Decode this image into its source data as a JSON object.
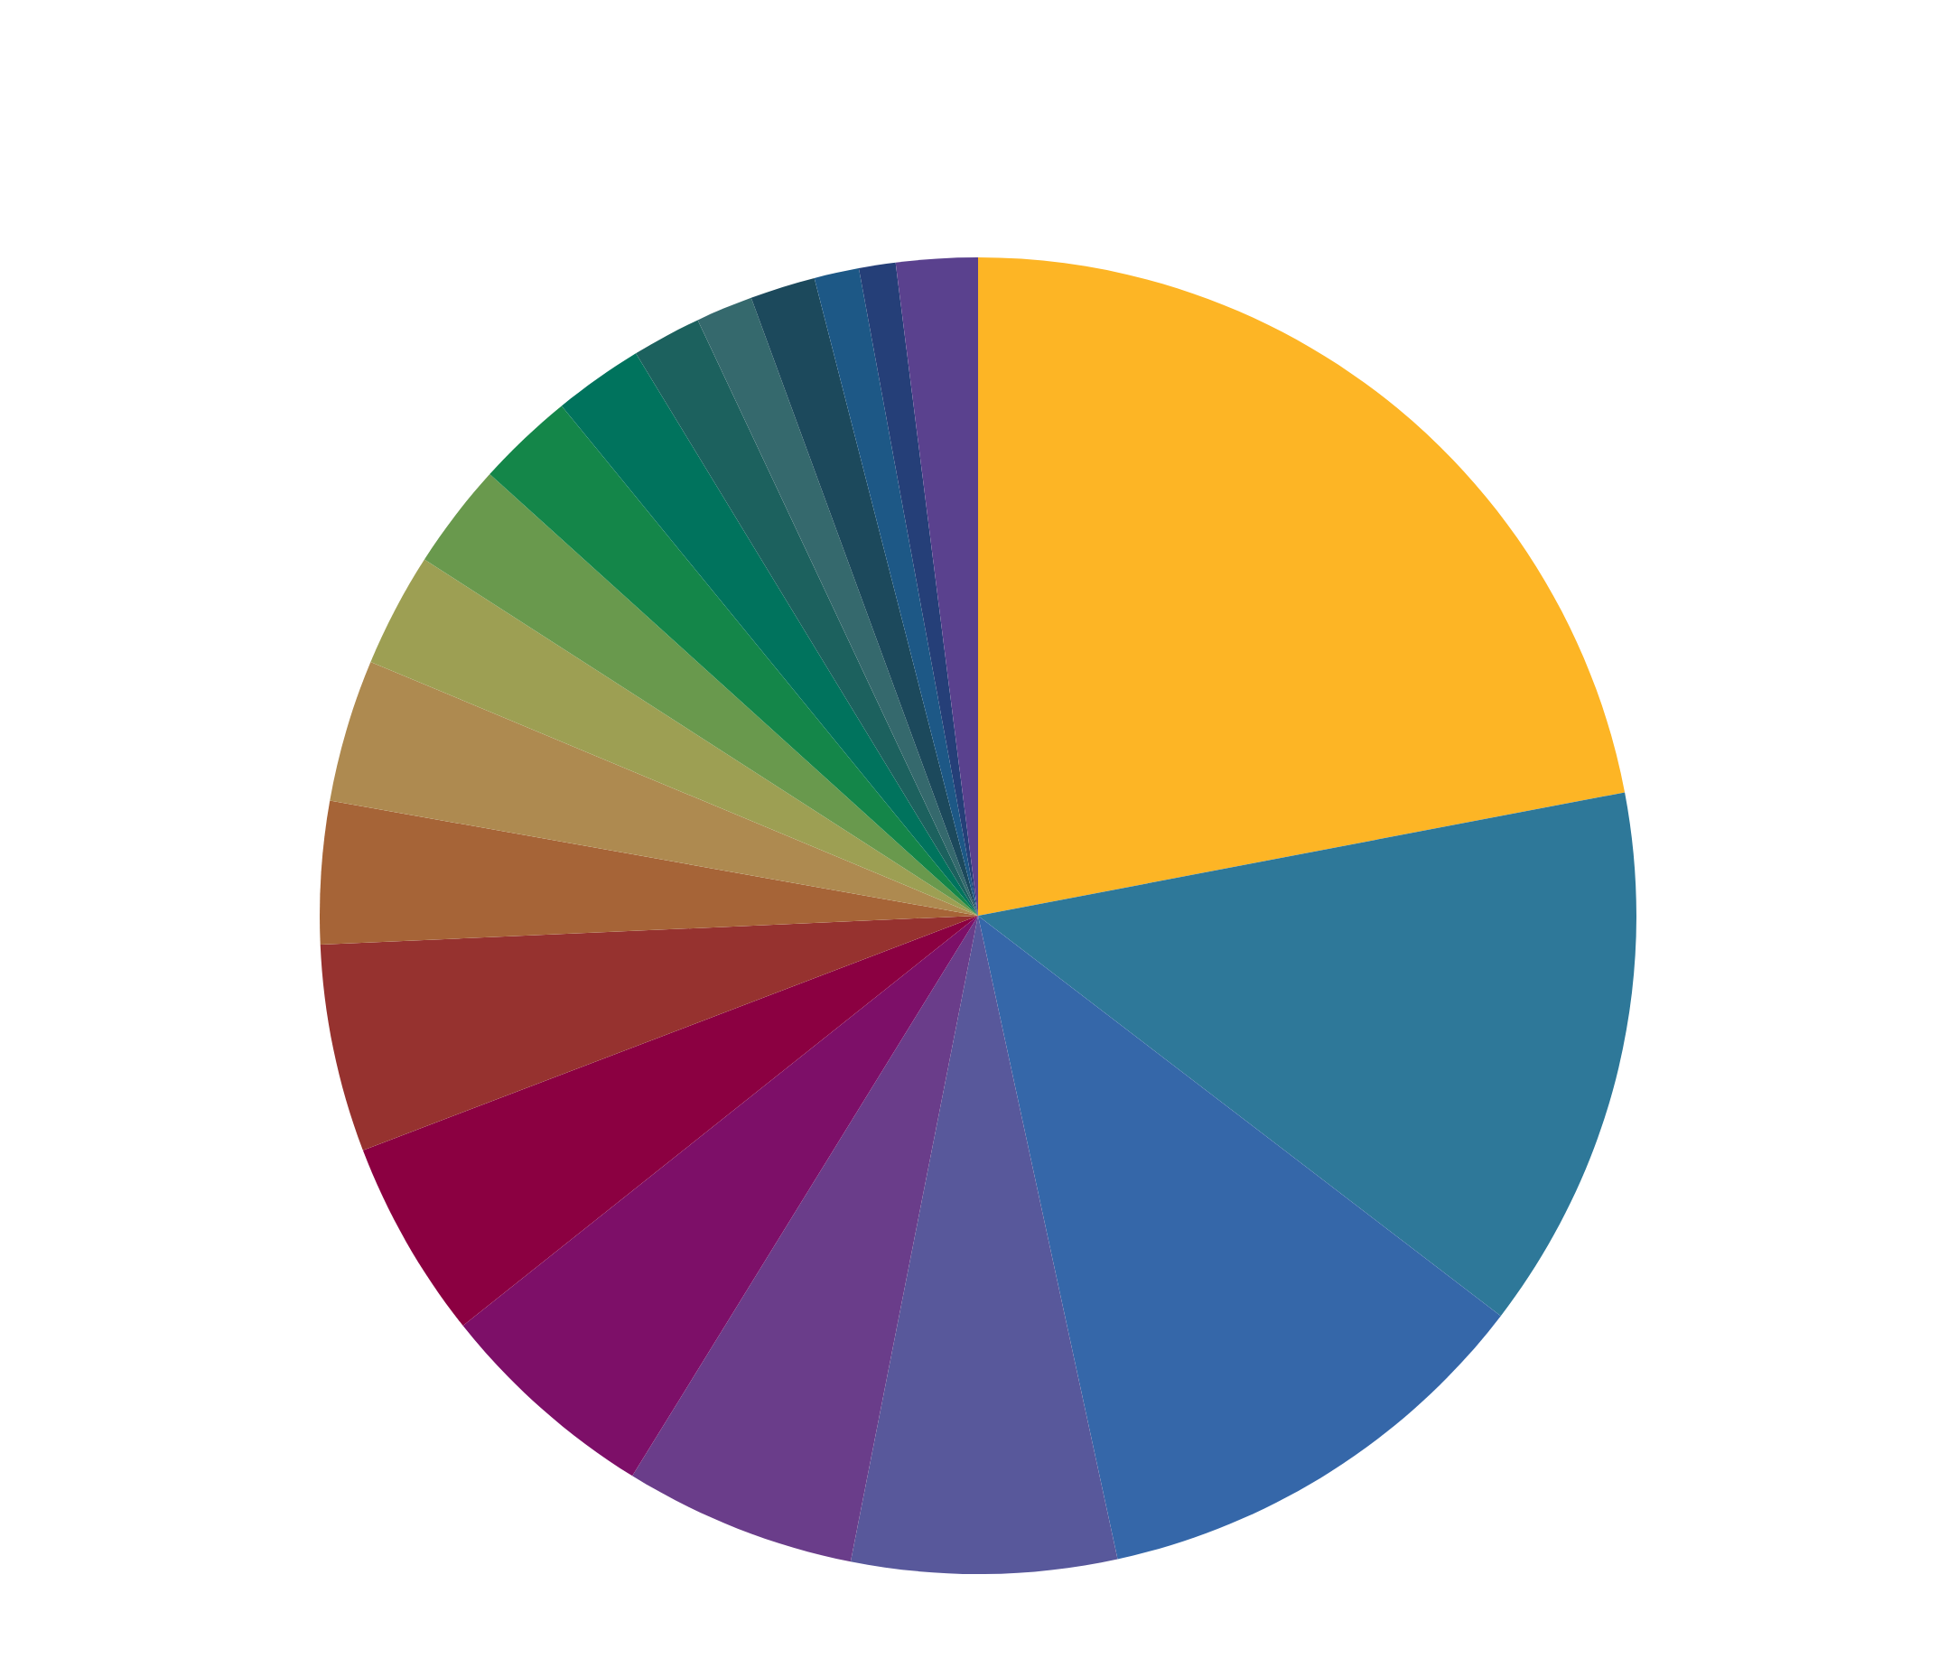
{
  "chart_data": {
    "type": "pie",
    "categories": [
      null,
      null,
      null,
      null,
      null,
      null,
      null,
      null,
      null,
      null,
      null,
      null,
      null,
      null,
      null,
      null,
      null,
      null,
      null,
      null
    ],
    "values": [
      22.0,
      13.4,
      11.2,
      6.5,
      5.7,
      5.5,
      4.9,
      5.1,
      3.5,
      3.5,
      2.8,
      2.6,
      2.4,
      2.2,
      1.7,
      1.4,
      1.6,
      1.1,
      0.9,
      2.0
    ],
    "colors": [
      "#fdb525",
      "#2e7899",
      "#3567a9",
      "#58589b",
      "#6a3d8a",
      "#7d0f68",
      "#8b0041",
      "#96322f",
      "#a66437",
      "#ae8a50",
      "#9d9f53",
      "#69994d",
      "#148649",
      "#00735d",
      "#1c615e",
      "#35696d",
      "#1c495c",
      "#1d5886",
      "#253f78",
      "#5a418e"
    ]
  }
}
